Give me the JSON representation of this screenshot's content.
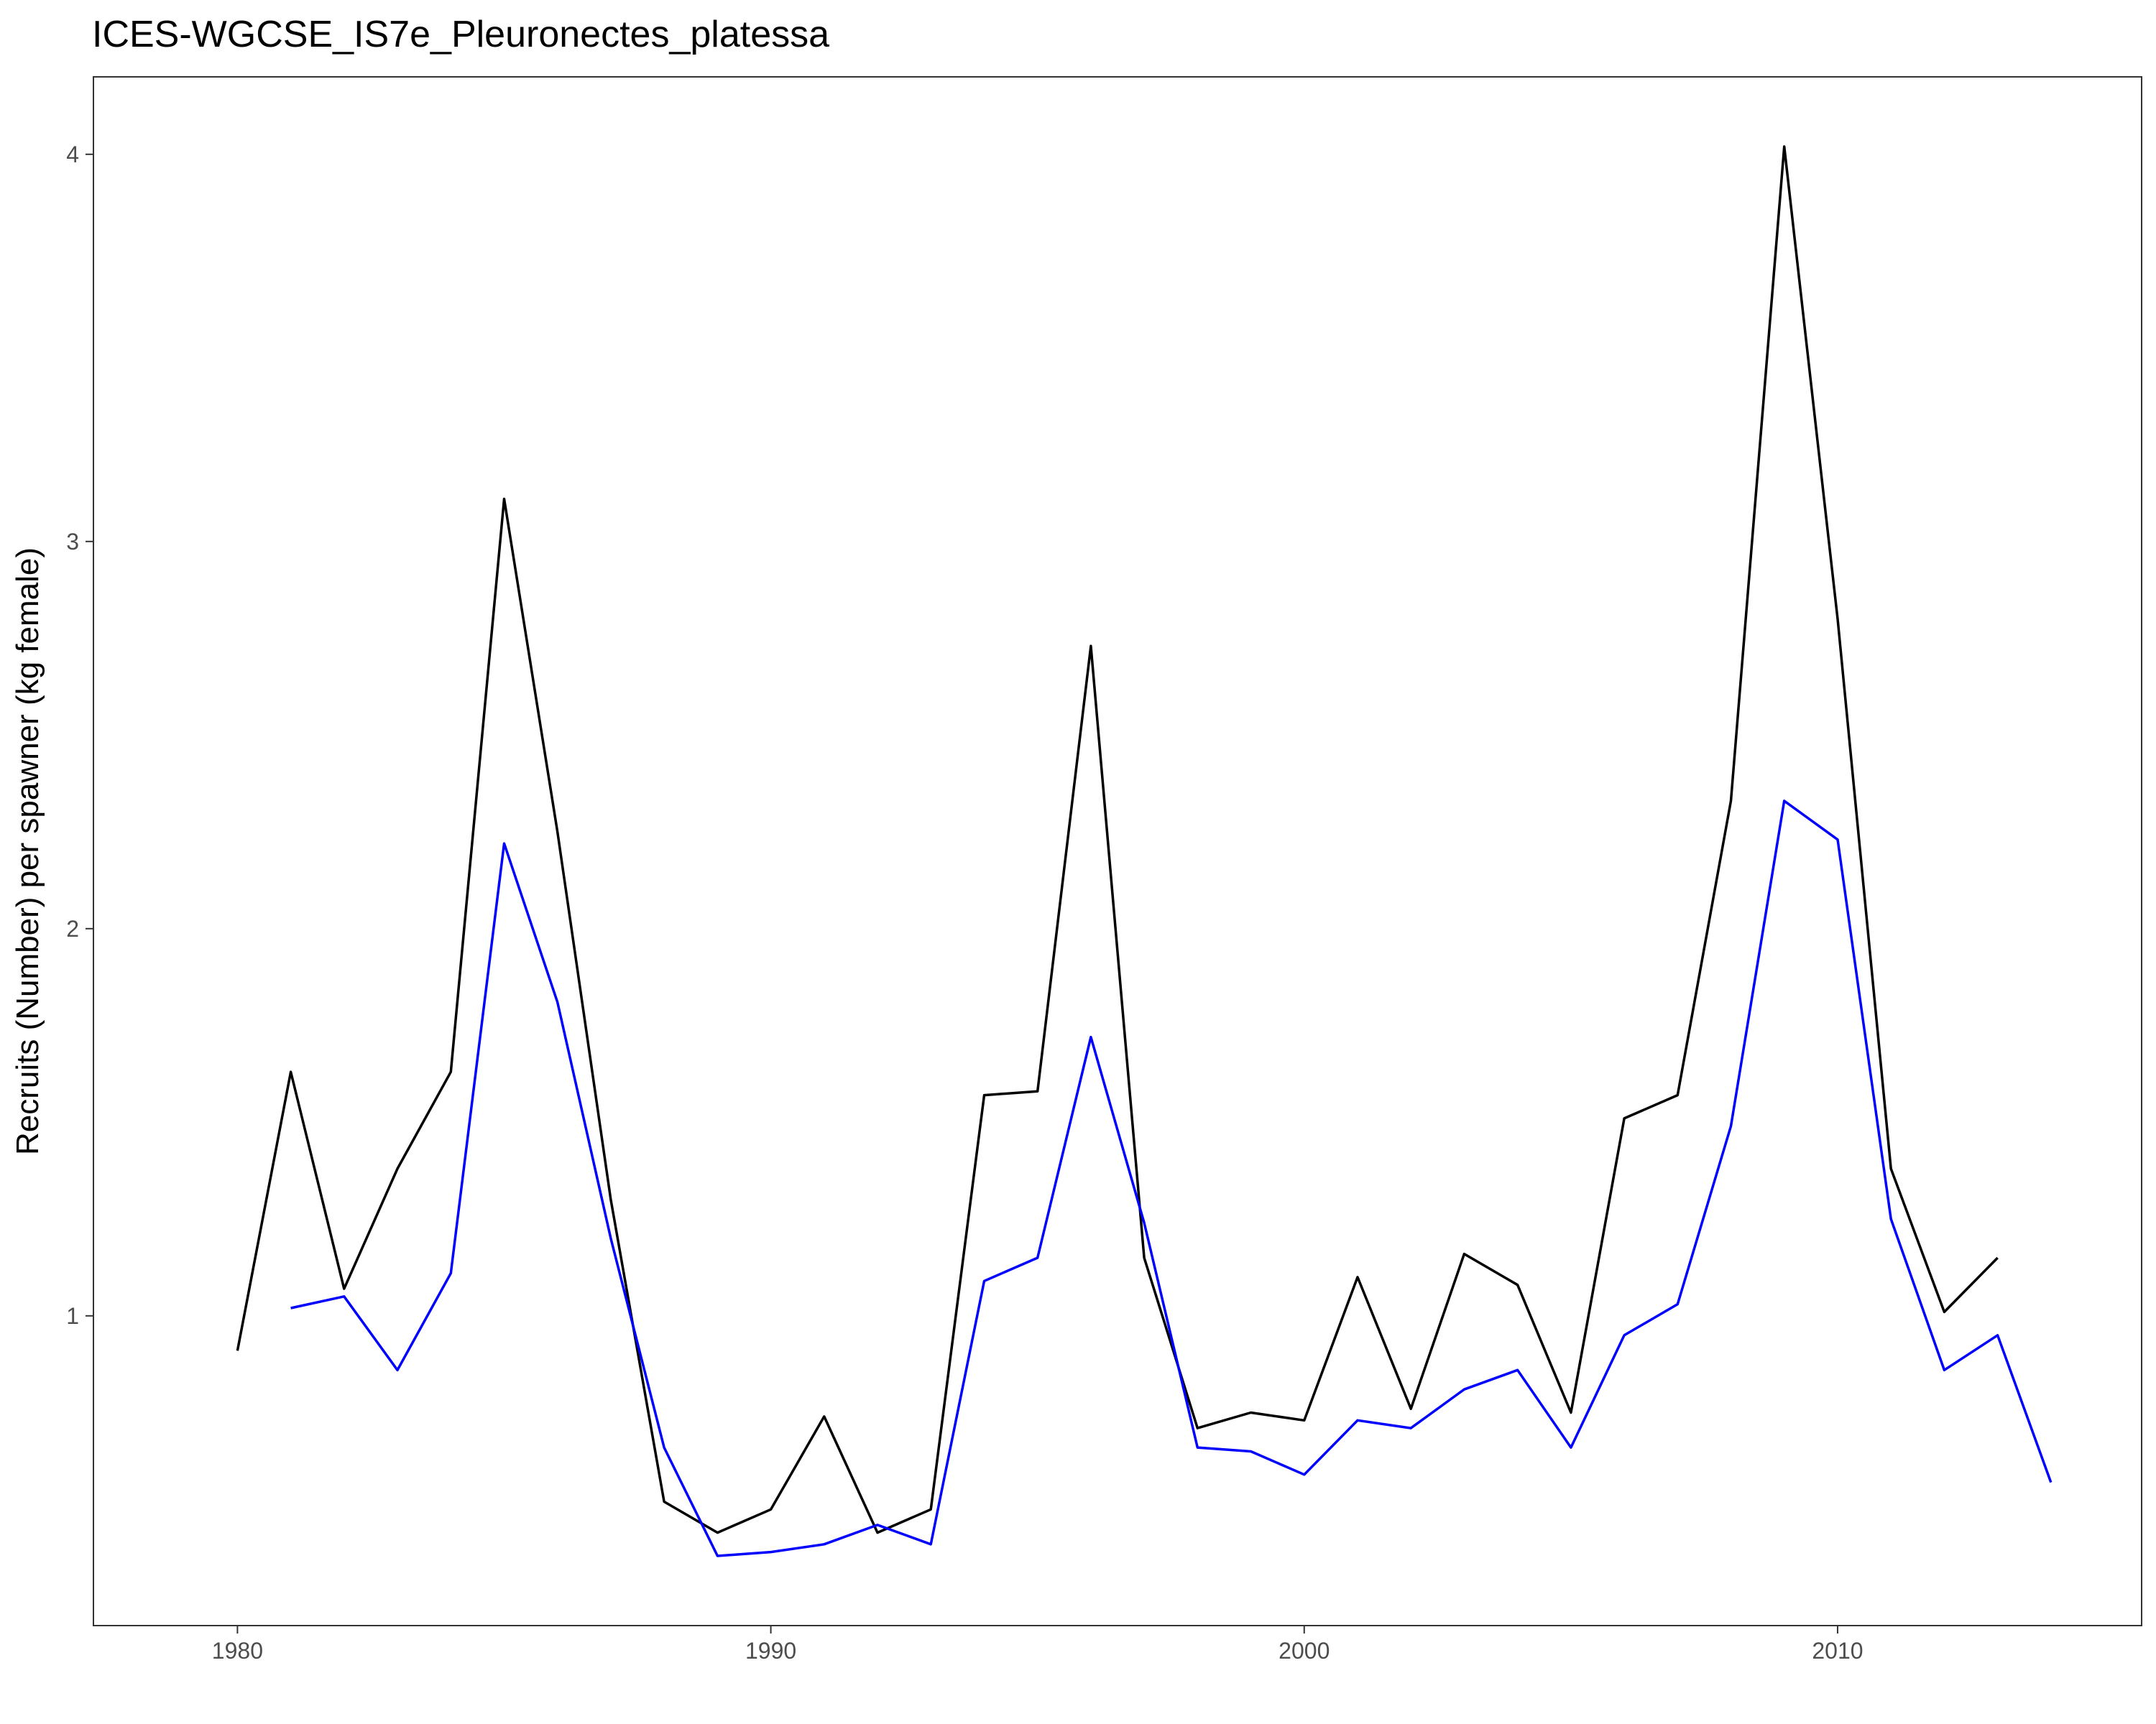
{
  "chart_data": {
    "type": "line",
    "title": "ICES-WGCSE_IS7e_Pleuronectes_platessa",
    "xlabel": "",
    "ylabel": "Recruits (Number) per spawner (kg female)",
    "xlim": [
      1977.3,
      2015.7
    ],
    "ylim": [
      0.2,
      4.2
    ],
    "x_ticks": [
      1980,
      1990,
      2000,
      2010
    ],
    "x_tick_labels": [
      "1980",
      "1990",
      "2000",
      "2010"
    ],
    "y_ticks": [
      1,
      2,
      3,
      4
    ],
    "y_tick_labels": [
      "1",
      "2",
      "3",
      "4"
    ],
    "grid": false,
    "series": [
      {
        "name": "black",
        "color": "#000000",
        "x": [
          1980,
          1981,
          1982,
          1983,
          1984,
          1985,
          1986,
          1987,
          1988,
          1989,
          1990,
          1991,
          1992,
          1993,
          1994,
          1995,
          1996,
          1997,
          1998,
          1999,
          2000,
          2001,
          2002,
          2003,
          2004,
          2005,
          2006,
          2007,
          2008,
          2009,
          2010,
          2011,
          2012,
          2013
        ],
        "y": [
          0.91,
          1.63,
          1.07,
          1.38,
          1.63,
          3.11,
          2.25,
          1.3,
          0.52,
          0.44,
          0.5,
          0.74,
          0.44,
          0.5,
          1.57,
          1.58,
          2.73,
          1.15,
          0.71,
          0.75,
          0.73,
          1.1,
          0.76,
          1.16,
          1.08,
          0.75,
          1.51,
          1.57,
          2.33,
          4.02,
          2.8,
          1.38,
          1.01,
          1.15
        ]
      },
      {
        "name": "blue",
        "color": "#0000ff",
        "x": [
          1981,
          1982,
          1983,
          1984,
          1985,
          1986,
          1987,
          1988,
          1989,
          1990,
          1991,
          1992,
          1993,
          1994,
          1995,
          1996,
          1997,
          1998,
          1999,
          2000,
          2001,
          2002,
          2003,
          2004,
          2005,
          2006,
          2007,
          2008,
          2009,
          2010,
          2011,
          2012,
          2013,
          2014
        ],
        "y": [
          1.02,
          1.05,
          0.86,
          1.11,
          2.22,
          1.81,
          1.2,
          0.66,
          0.38,
          0.39,
          0.41,
          0.46,
          0.41,
          1.09,
          1.15,
          1.72,
          1.24,
          0.66,
          0.65,
          0.59,
          0.73,
          0.71,
          0.81,
          0.86,
          0.66,
          0.95,
          1.03,
          1.49,
          2.33,
          2.23,
          1.25,
          0.86,
          0.95,
          0.57
        ]
      }
    ]
  }
}
